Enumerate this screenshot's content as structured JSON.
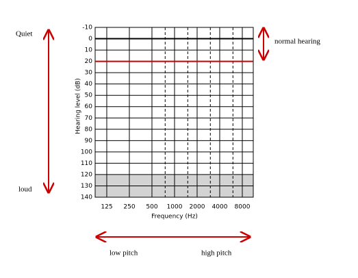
{
  "chart_data": {
    "type": "audiogram",
    "xlabel": "Frequency (Hz)",
    "ylabel": "Hearing level (dB)",
    "xlim": [
      87.5,
      11200
    ],
    "xlog": true,
    "xticks": [
      125,
      250,
      500,
      1000,
      2000,
      4000,
      8000
    ],
    "minor_xticks": [
      750,
      1500,
      3000,
      6000
    ],
    "ylim": [
      140,
      -10
    ],
    "yticks": [
      -10,
      0,
      10,
      20,
      30,
      40,
      50,
      60,
      70,
      80,
      90,
      100,
      110,
      120,
      130,
      140
    ],
    "grid": true,
    "reference_lines": [
      {
        "value": 0,
        "color": "#000000"
      },
      {
        "value": 20,
        "color": "#cc0000"
      }
    ],
    "shaded_band": {
      "from": 120,
      "to": 140,
      "color": "#d3d3d3"
    },
    "annotations": {
      "quiet": "Quiet",
      "loud": "loud",
      "normal": "normal hearing",
      "low": "low pitch",
      "high": "high pitch"
    }
  }
}
